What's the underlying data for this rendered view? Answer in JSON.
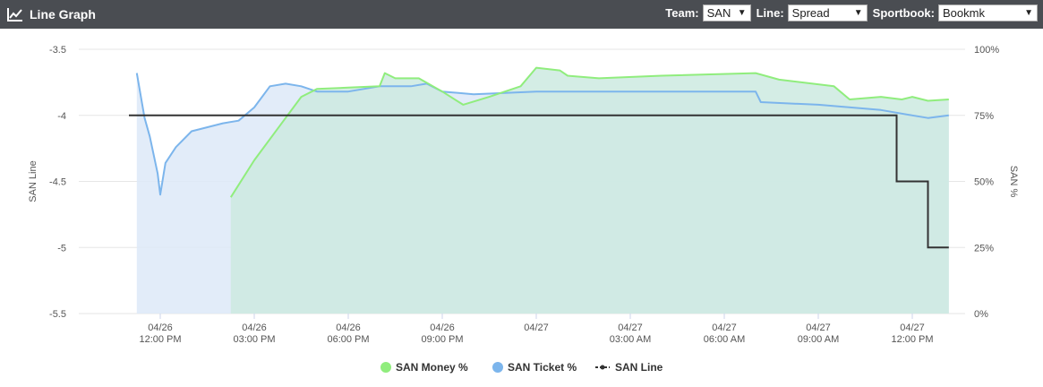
{
  "header": {
    "title": "Line Graph",
    "icon": "line-chart-icon",
    "team_label": "Team:",
    "team_value": "SAN",
    "line_label": "Line:",
    "line_value": "Spread",
    "sportsbook_label": "Sportbook:",
    "sportsbook_value": "Bookmk",
    "bg_color": "#4a4d52"
  },
  "chart_data": {
    "type": "line",
    "title": "",
    "ylabel_left": "SAN Line",
    "ylabel_right": "SAN %",
    "ylim_left": [
      -5.5,
      -3.5
    ],
    "ylim_right": [
      0,
      100
    ],
    "left_ticks": [
      "-3.5",
      "-4",
      "-4.5",
      "-5",
      "-5.5"
    ],
    "right_ticks": [
      "100%",
      "75%",
      "50%",
      "25%",
      "0%"
    ],
    "x_ticks": [
      {
        "date": "04/26",
        "time": "12:00 PM"
      },
      {
        "date": "04/26",
        "time": "03:00 PM"
      },
      {
        "date": "04/26",
        "time": "06:00 PM"
      },
      {
        "date": "04/26",
        "time": "09:00 PM"
      },
      {
        "date": "04/27",
        "time": ""
      },
      {
        "date": "04/27",
        "time": "03:00 AM"
      },
      {
        "date": "04/27",
        "time": "06:00 AM"
      },
      {
        "date": "04/27",
        "time": "09:00 AM"
      },
      {
        "date": "04/27",
        "time": "12:00 PM"
      }
    ],
    "grid": true,
    "legend_position": "bottom-center",
    "series": [
      {
        "name": "SAN Money %",
        "color": "#90ed7d",
        "fill": "#cdeae0",
        "axis": "right",
        "style": "area",
        "points": [
          [
            "04/26 14:15",
            44
          ],
          [
            "04/26 15:00",
            58
          ],
          [
            "04/26 16:00",
            74
          ],
          [
            "04/26 16:30",
            82
          ],
          [
            "04/26 17:00",
            85
          ],
          [
            "04/26 18:00",
            85.5
          ],
          [
            "04/26 19:00",
            86
          ],
          [
            "04/26 19:10",
            91
          ],
          [
            "04/26 19:30",
            89
          ],
          [
            "04/26 20:15",
            89
          ],
          [
            "04/26 21:00",
            84
          ],
          [
            "04/26 21:40",
            79
          ],
          [
            "04/26 22:30",
            82
          ],
          [
            "04/26 23:30",
            86
          ],
          [
            "04/27 00:00",
            93
          ],
          [
            "04/27 00:45",
            92
          ],
          [
            "04/27 01:00",
            90
          ],
          [
            "04/27 02:00",
            89
          ],
          [
            "04/27 04:00",
            90
          ],
          [
            "04/27 07:00",
            91
          ],
          [
            "04/27 07:45",
            88.5
          ],
          [
            "04/27 09:30",
            86
          ],
          [
            "04/27 10:00",
            81
          ],
          [
            "04/27 11:00",
            82
          ],
          [
            "04/27 11:40",
            81
          ],
          [
            "04/27 12:00",
            82
          ],
          [
            "04/27 12:30",
            80.5
          ],
          [
            "04/27 13:10",
            81
          ]
        ]
      },
      {
        "name": "SAN Ticket %",
        "color": "#7cb5ec",
        "fill": "#dde9f8",
        "axis": "right",
        "style": "area",
        "points": [
          [
            "04/26 11:15",
            91
          ],
          [
            "04/26 11:30",
            74
          ],
          [
            "04/26 11:40",
            67
          ],
          [
            "04/26 11:55",
            53
          ],
          [
            "04/26 12:00",
            45
          ],
          [
            "04/26 12:10",
            57
          ],
          [
            "04/26 12:30",
            63
          ],
          [
            "04/26 13:00",
            69
          ],
          [
            "04/26 14:00",
            72
          ],
          [
            "04/26 14:30",
            73
          ],
          [
            "04/26 15:00",
            78
          ],
          [
            "04/26 15:30",
            86
          ],
          [
            "04/26 16:00",
            87
          ],
          [
            "04/26 16:30",
            86
          ],
          [
            "04/26 17:00",
            84
          ],
          [
            "04/26 18:00",
            84
          ],
          [
            "04/26 19:00",
            86
          ],
          [
            "04/26 20:00",
            86
          ],
          [
            "04/26 20:30",
            87
          ],
          [
            "04/26 21:00",
            84
          ],
          [
            "04/26 22:00",
            83
          ],
          [
            "04/27 00:00",
            84
          ],
          [
            "04/27 03:00",
            84
          ],
          [
            "04/27 07:00",
            84
          ],
          [
            "04/27 07:10",
            80
          ],
          [
            "04/27 09:00",
            79
          ],
          [
            "04/27 11:00",
            77
          ],
          [
            "04/27 12:00",
            75
          ],
          [
            "04/27 12:30",
            74
          ],
          [
            "04/27 13:10",
            75
          ]
        ]
      },
      {
        "name": "SAN Line",
        "color": "#333333",
        "axis": "left",
        "style": "step",
        "points": [
          [
            "04/26 11:00",
            -4
          ],
          [
            "04/27 11:30",
            -4
          ],
          [
            "04/27 11:30",
            -4.5
          ],
          [
            "04/27 12:30",
            -4.5
          ],
          [
            "04/27 12:30",
            -5
          ],
          [
            "04/27 13:10",
            -5
          ]
        ]
      }
    ]
  }
}
